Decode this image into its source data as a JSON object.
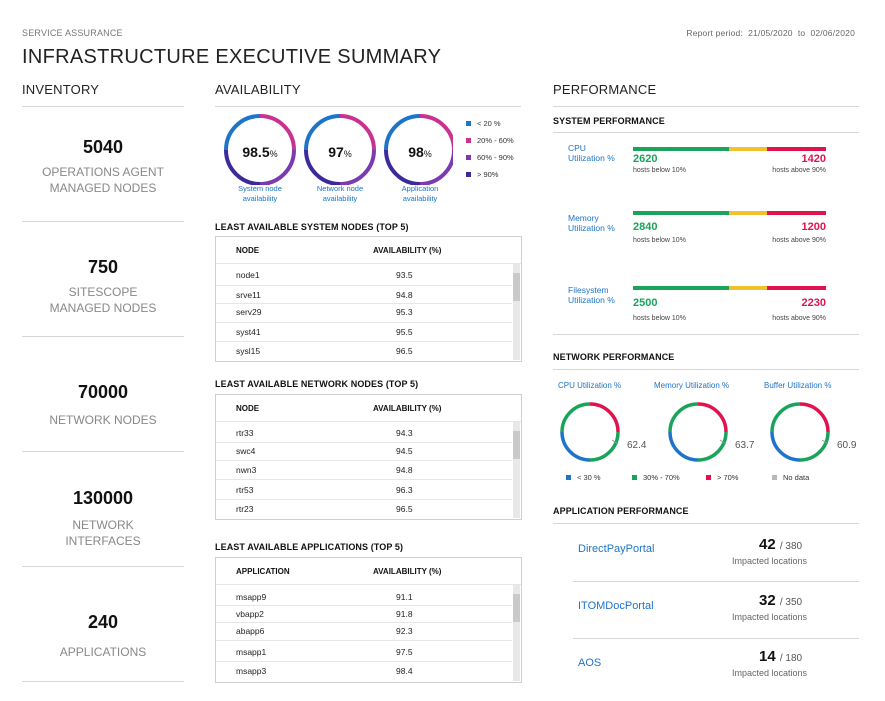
{
  "header": {
    "eyebrow": "SERVICE ASSURANCE",
    "title": "INFRASTRUCTURE EXECUTIVE SUMMARY",
    "report_label": "Report period:",
    "report_from": "21/05/2020",
    "report_to_word": "to",
    "report_to": "02/06/2020"
  },
  "inventory": {
    "title": "INVENTORY",
    "items": [
      {
        "value": "5040",
        "label_1": "OPERATIONS AGENT",
        "label_2": "MANAGED NODES"
      },
      {
        "value": "750",
        "label_1": "SITESCOPE",
        "label_2": "MANAGED NODES"
      },
      {
        "value": "70000",
        "label_1": "NETWORK NODES",
        "label_2": ""
      },
      {
        "value": "130000",
        "label_1": "NETWORK",
        "label_2": "INTERFACES"
      },
      {
        "value": "240",
        "label_1": "APPLICATIONS",
        "label_2": ""
      }
    ]
  },
  "availability": {
    "title": "AVAILABILITY",
    "donuts": [
      {
        "value": "98.5",
        "unit": "%",
        "cap_1": "System node",
        "cap_2": "availability"
      },
      {
        "value": "97",
        "unit": "%",
        "cap_1": "Network node",
        "cap_2": "availability"
      },
      {
        "value": "98",
        "unit": "%",
        "cap_1": "Application",
        "cap_2": "availability"
      }
    ],
    "legend": [
      {
        "label": "< 20 %",
        "color": "#1e74c9"
      },
      {
        "label": "20% - 60%",
        "color": "#c8338f"
      },
      {
        "label": "60% - 90%",
        "color": "#7b3bb0"
      },
      {
        "label": "> 90%",
        "color": "#3b2a9a"
      }
    ],
    "tables": [
      {
        "title": "LEAST AVAILABLE SYSTEM NODES (TOP 5)",
        "col1": "NODE",
        "col2": "AVAILABILITY (%)",
        "rows": [
          {
            "name": "node1",
            "value": "93.5"
          },
          {
            "name": "srve11",
            "value": "94.8"
          },
          {
            "name": "serv29",
            "value": "95.3"
          },
          {
            "name": "syst41",
            "value": "95.5"
          },
          {
            "name": "sysl15",
            "value": "96.5"
          }
        ]
      },
      {
        "title": "LEAST AVAILABLE NETWORK NODES (TOP 5)",
        "col1": "NODE",
        "col2": "AVAILABILITY (%)",
        "rows": [
          {
            "name": "rtr33",
            "value": "94.3"
          },
          {
            "name": "swc4",
            "value": "94.5"
          },
          {
            "name": "nwn3",
            "value": "94.8"
          },
          {
            "name": "rtr53",
            "value": "96.3"
          },
          {
            "name": "rtr23",
            "value": "96.5"
          }
        ]
      },
      {
        "title": "LEAST AVAILABLE APPLICATIONS (TOP 5)",
        "col1": "APPLICATION",
        "col2": "AVAILABILITY (%)",
        "rows": [
          {
            "name": "msapp9",
            "value": "91.1"
          },
          {
            "name": "vbapp2",
            "value": "91.8"
          },
          {
            "name": "abapp6",
            "value": "92.3"
          },
          {
            "name": "msapp1",
            "value": "97.5"
          },
          {
            "name": "msapp3",
            "value": "98.4"
          }
        ]
      }
    ]
  },
  "performance": {
    "title": "PERFORMANCE",
    "system": {
      "title": "SYSTEM PERFORMANCE",
      "rows": [
        {
          "label_1": "CPU",
          "label_2": "Utilization %",
          "low": "2620",
          "high": "1420",
          "low_cap": "hosts below 10%",
          "high_cap": "hosts above 90%"
        },
        {
          "label_1": "Memory",
          "label_2": "Utilization %",
          "low": "2840",
          "high": "1200",
          "low_cap": "hosts below 10%",
          "high_cap": "hosts above 90%"
        },
        {
          "label_1": "Filesystem",
          "label_2": "Utilization %",
          "low": "2500",
          "high": "2230",
          "low_cap": "hosts below 10%",
          "high_cap": "hosts above 90%"
        }
      ],
      "colors": {
        "low": "#1aa35a",
        "mid": "#f2c12e",
        "high": "#e0134f"
      }
    },
    "network": {
      "title": "NETWORK PERFORMANCE",
      "gauges": [
        {
          "title": "CPU Utilization %",
          "value": "62.4"
        },
        {
          "title": "Memory Utilization %",
          "value": "63.7"
        },
        {
          "title": "Buffer Utilization %",
          "value": "60.9"
        }
      ],
      "legend": [
        {
          "label": "< 30 %",
          "color": "#1e74c9"
        },
        {
          "label": "30% - 70%",
          "color": "#1aa35a"
        },
        {
          "label": "> 70%",
          "color": "#e0134f"
        },
        {
          "label": "No data",
          "color": "#b8b8b8"
        }
      ]
    },
    "application": {
      "title": "APPLICATION PERFORMANCE",
      "rows": [
        {
          "name": "DirectPayPortal",
          "value": "42",
          "total": "380",
          "cap": "Impacted locations"
        },
        {
          "name": "ITOMDocPortal",
          "value": "32",
          "total": "350",
          "cap": "Impacted locations"
        },
        {
          "name": "AOS",
          "value": "14",
          "total": "180",
          "cap": "Impacted locations"
        }
      ]
    }
  }
}
